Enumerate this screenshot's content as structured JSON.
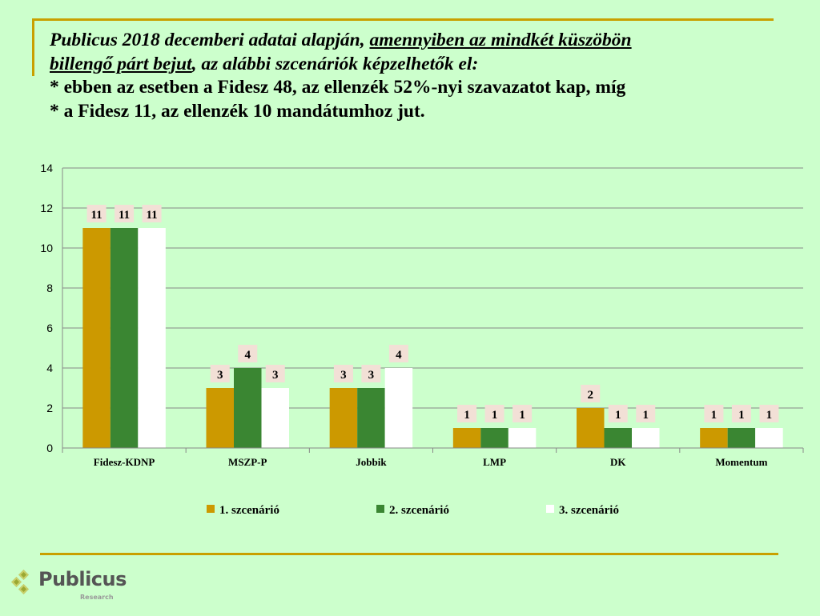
{
  "header": {
    "line1_plain": "Publicus 2018 decemberi adatai alapján, ",
    "line1_underlined": "amennyiben az mindkét küszöbön",
    "line2_underlined": "billengő párt bejut",
    "line2_plain": ", az alábbi szcenáriók képzelhetők el:",
    "line3": "* ebben az esetben a Fidesz 48, az ellenzék 52%-nyi szavazatot kap, míg",
    "line4": "* a Fidesz 11, az ellenzék 10 mandátumhoz jut."
  },
  "logo": {
    "name": "Publicus",
    "subtitle": "Research"
  },
  "chart_data": {
    "type": "bar",
    "categories": [
      "Fidesz-KDNP",
      "MSZP-P",
      "Jobbik",
      "LMP",
      "DK",
      "Momentum"
    ],
    "series": [
      {
        "name": "1. szcenárió",
        "color": "#CC9900",
        "values": [
          11,
          3,
          3,
          1,
          2,
          1
        ]
      },
      {
        "name": "2. szcenárió",
        "color": "#3A8632",
        "values": [
          11,
          4,
          3,
          1,
          1,
          1
        ]
      },
      {
        "name": "3. szcenárió",
        "color": "#FFFFFF",
        "values": [
          11,
          3,
          4,
          1,
          1,
          1
        ]
      }
    ],
    "ylim": [
      0,
      14
    ],
    "yticks": [
      0,
      2,
      4,
      6,
      8,
      10,
      12,
      14
    ],
    "grid": true,
    "legend": "bottom",
    "data_labels": true
  }
}
